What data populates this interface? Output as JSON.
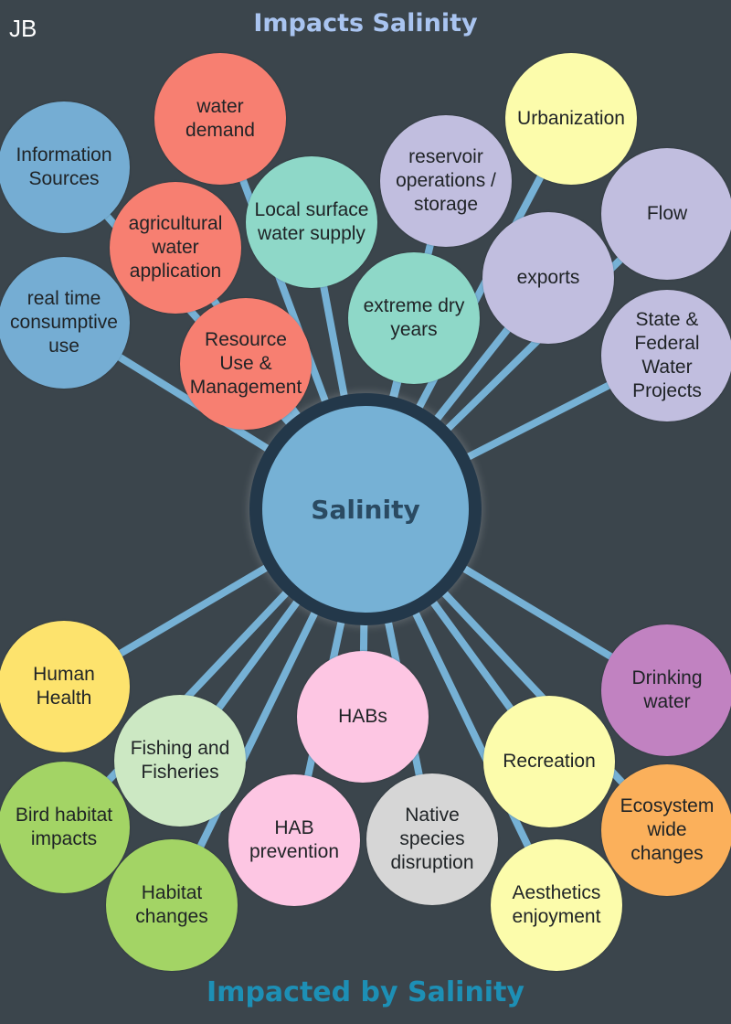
{
  "initials": "JB",
  "title_top": "Impacts Salinity",
  "title_bottom": "Impacted by Salinity",
  "center_label": "Salinity",
  "colors": {
    "background": "#3b454c",
    "connector": "#76b1d5",
    "hub_ring": "#23384a",
    "hub_fill": "#76b1d5"
  },
  "bubbles": [
    {
      "id": "water-demand",
      "label": "water\ndemand",
      "color": "#f77f71"
    },
    {
      "id": "information-sources",
      "label": "Information\nSources",
      "color": "#75add3"
    },
    {
      "id": "agricultural-water-application",
      "label": "agricultural\nwater\napplication",
      "color": "#f77f71"
    },
    {
      "id": "local-surface-water-supply",
      "label": "Local surface\nwater supply",
      "color": "#8ed8c8"
    },
    {
      "id": "reservoir-operations-storage",
      "label": "reservoir\noperations /\nstorage",
      "color": "#c1bedf"
    },
    {
      "id": "urbanization",
      "label": "Urbanization",
      "color": "#fcfcab"
    },
    {
      "id": "flow",
      "label": "Flow",
      "color": "#c1bedf"
    },
    {
      "id": "exports",
      "label": "exports",
      "color": "#c1bedf"
    },
    {
      "id": "extreme-dry-years",
      "label": "extreme dry\nyears",
      "color": "#8ed8c8"
    },
    {
      "id": "real-time-consumptive-use",
      "label": "real time\nconsumptive\nuse",
      "color": "#75add3"
    },
    {
      "id": "resource-use-management",
      "label": "Resource\nUse &\nManagement",
      "color": "#f77f71"
    },
    {
      "id": "state-federal-water-projects",
      "label": "State &\nFederal\nWater\nProjects",
      "color": "#c1bedf"
    },
    {
      "id": "human-health",
      "label": "Human\nHealth",
      "color": "#fde36d"
    },
    {
      "id": "habs",
      "label": "HABs",
      "color": "#fdc6e3"
    },
    {
      "id": "drinking-water",
      "label": "Drinking\nwater",
      "color": "#c182c1"
    },
    {
      "id": "fishing-and-fisheries",
      "label": "Fishing and\nFisheries",
      "color": "#cce8c3"
    },
    {
      "id": "recreation",
      "label": "Recreation",
      "color": "#fcfcab"
    },
    {
      "id": "bird-habitat-impacts",
      "label": "Bird habitat\nimpacts",
      "color": "#a3d465"
    },
    {
      "id": "hab-prevention",
      "label": "HAB\nprevention",
      "color": "#fdc6e3"
    },
    {
      "id": "native-species-disruption",
      "label": "Native\nspecies\ndisruption",
      "color": "#d6d6d6"
    },
    {
      "id": "ecosystem-wide-changes",
      "label": "Ecosystem\nwide\nchanges",
      "color": "#fbb05b"
    },
    {
      "id": "habitat-changes",
      "label": "Habitat\nchanges",
      "color": "#a3d465"
    },
    {
      "id": "aesthetics-enjoyment",
      "label": "Aesthetics\nenjoyment",
      "color": "#fcfcab"
    }
  ]
}
